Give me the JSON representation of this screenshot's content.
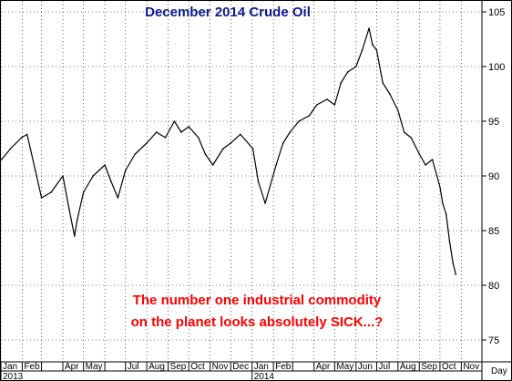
{
  "chart_data": {
    "type": "line",
    "title": "December 2014 Crude Oil",
    "annotation": [
      "The number one industrial commodity",
      "on the planet looks absolutely SICK...?"
    ],
    "x_unit_label": "Day",
    "y_axis_side": "right",
    "ylim": [
      73,
      106
    ],
    "y_ticks": [
      75,
      80,
      85,
      90,
      95,
      100,
      105
    ],
    "month_labels": [
      "Jan",
      "Feb",
      "Apr",
      "May",
      "Jul",
      "Aug",
      "Sep",
      "Oct",
      "Nov",
      "Dec",
      "Jan",
      "Feb",
      "Apr",
      "May",
      "Jun",
      "Jul",
      "Aug",
      "Sep",
      "Oct",
      "Nov"
    ],
    "year_labels": [
      "2013",
      "2014"
    ],
    "grid": "dotted",
    "colors": {
      "title": "#0b1a8c",
      "annotation": "#ff0000",
      "line": "#000000",
      "grid": "#000000"
    },
    "series": [
      {
        "x": [
          "2013-01-02",
          "2013-01-15",
          "2013-01-31",
          "2013-02-08",
          "2013-02-20",
          "2013-03-01",
          "2013-03-15",
          "2013-04-01",
          "2013-04-10",
          "2013-04-18",
          "2013-04-22",
          "2013-05-01",
          "2013-05-15",
          "2013-06-01",
          "2013-06-10",
          "2013-06-20",
          "2013-07-01",
          "2013-07-15",
          "2013-08-01",
          "2013-08-15",
          "2013-08-28",
          "2013-09-10",
          "2013-09-20",
          "2013-10-01",
          "2013-10-15",
          "2013-10-25",
          "2013-11-05",
          "2013-11-20",
          "2013-12-01",
          "2013-12-15",
          "2014-01-02",
          "2014-01-10",
          "2014-01-20",
          "2014-02-05",
          "2014-02-15",
          "2014-02-25",
          "2014-03-10",
          "2014-03-25",
          "2014-04-05",
          "2014-04-20",
          "2014-05-01",
          "2014-05-10",
          "2014-05-20",
          "2014-06-01",
          "2014-06-10",
          "2014-06-20",
          "2014-06-25",
          "2014-07-01",
          "2014-07-10",
          "2014-07-20",
          "2014-08-01",
          "2014-08-10",
          "2014-08-20",
          "2014-09-01",
          "2014-09-10",
          "2014-09-20",
          "2014-10-01",
          "2014-10-05",
          "2014-10-10",
          "2014-10-15",
          "2014-10-20",
          "2014-10-24"
        ],
        "values": [
          91.5,
          92.5,
          93.5,
          93.8,
          90.5,
          88.0,
          88.5,
          90.0,
          87.0,
          84.5,
          86.0,
          88.5,
          90.0,
          91.0,
          89.5,
          88.0,
          90.5,
          92.0,
          93.0,
          94.0,
          93.5,
          95.0,
          94.0,
          94.5,
          93.5,
          92.0,
          91.0,
          92.5,
          93.0,
          93.8,
          92.5,
          89.5,
          87.5,
          91.0,
          93.0,
          94.0,
          95.0,
          95.5,
          96.5,
          97.0,
          96.5,
          98.5,
          99.5,
          100.0,
          101.5,
          103.5,
          102.0,
          101.5,
          98.5,
          97.5,
          96.0,
          94.0,
          93.5,
          92.0,
          91.0,
          91.5,
          89.0,
          87.5,
          86.5,
          84.0,
          82.0,
          81.0
        ]
      }
    ]
  }
}
